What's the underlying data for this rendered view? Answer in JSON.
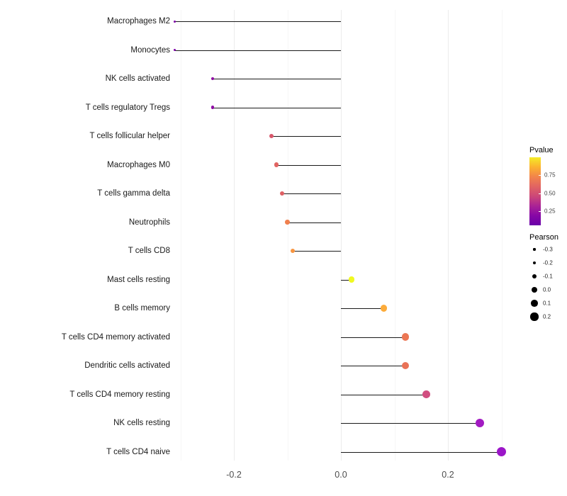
{
  "chart_data": {
    "type": "scatter",
    "subtype": "lollipop",
    "title": "",
    "xlabel": "",
    "ylabel": "",
    "xlim": [
      -0.34,
      0.32
    ],
    "x_ticks": [
      -0.2,
      0.0,
      0.2
    ],
    "x_tick_labels": [
      "-0.2",
      "0.0",
      "0.2"
    ],
    "x_minor_ticks": [
      -0.3,
      -0.1,
      0.1,
      0.3
    ],
    "grid": "faint vertical gridlines at ticks, white background",
    "baseline": 0.0,
    "points": [
      {
        "label": "Macrophages M2",
        "pearson": -0.31,
        "pvalue": 0.1,
        "color": "#7e03a8"
      },
      {
        "label": "Monocytes",
        "pearson": -0.31,
        "pvalue": 0.1,
        "color": "#7e03a8"
      },
      {
        "label": "NK cells activated",
        "pearson": -0.24,
        "pvalue": 0.14,
        "color": "#8f0da4"
      },
      {
        "label": "T cells regulatory  Tregs",
        "pearson": -0.24,
        "pvalue": 0.14,
        "color": "#8f0da4"
      },
      {
        "label": "T cells follicular helper",
        "pearson": -0.13,
        "pvalue": 0.5,
        "color": "#d8576b"
      },
      {
        "label": "Macrophages M0",
        "pearson": -0.12,
        "pvalue": 0.55,
        "color": "#e16462"
      },
      {
        "label": "T cells gamma delta",
        "pearson": -0.11,
        "pvalue": 0.53,
        "color": "#de6064"
      },
      {
        "label": "Neutrophils",
        "pearson": -0.1,
        "pvalue": 0.65,
        "color": "#f0804e"
      },
      {
        "label": "T cells CD8",
        "pearson": -0.09,
        "pvalue": 0.7,
        "color": "#f89540"
      },
      {
        "label": "Mast cells resting",
        "pearson": 0.02,
        "pvalue": 0.97,
        "color": "#f0f921"
      },
      {
        "label": "B cells memory",
        "pearson": 0.08,
        "pvalue": 0.76,
        "color": "#fcab3a"
      },
      {
        "label": "T cells CD4 memory activated",
        "pearson": 0.12,
        "pvalue": 0.58,
        "color": "#ec7754"
      },
      {
        "label": "Dendritic cells activated",
        "pearson": 0.12,
        "pvalue": 0.57,
        "color": "#e97257"
      },
      {
        "label": "T cells CD4 memory resting",
        "pearson": 0.16,
        "pvalue": 0.4,
        "color": "#d14e80"
      },
      {
        "label": "NK cells resting",
        "pearson": 0.26,
        "pvalue": 0.18,
        "color": "#a21bc2"
      },
      {
        "label": "T cells CD4 naive",
        "pearson": 0.3,
        "pvalue": 0.16,
        "color": "#9b16c8"
      }
    ],
    "legend": {
      "color": {
        "title": "Pvalue",
        "tick_labels": [
          "0.75",
          "0.50",
          "0.25"
        ],
        "range": [
          0.05,
          1.0
        ],
        "gradient_top_to_bottom": [
          "#f4ec27",
          "#fcb22f",
          "#f2844b",
          "#e16462",
          "#cc4778",
          "#aa2395",
          "#8707a6",
          "#6a00a8"
        ]
      },
      "size": {
        "title": "Pearson",
        "entry_labels": [
          "-0.3",
          "-0.2",
          "-0.1",
          "0.0",
          "0.1",
          "0.2"
        ]
      }
    }
  }
}
